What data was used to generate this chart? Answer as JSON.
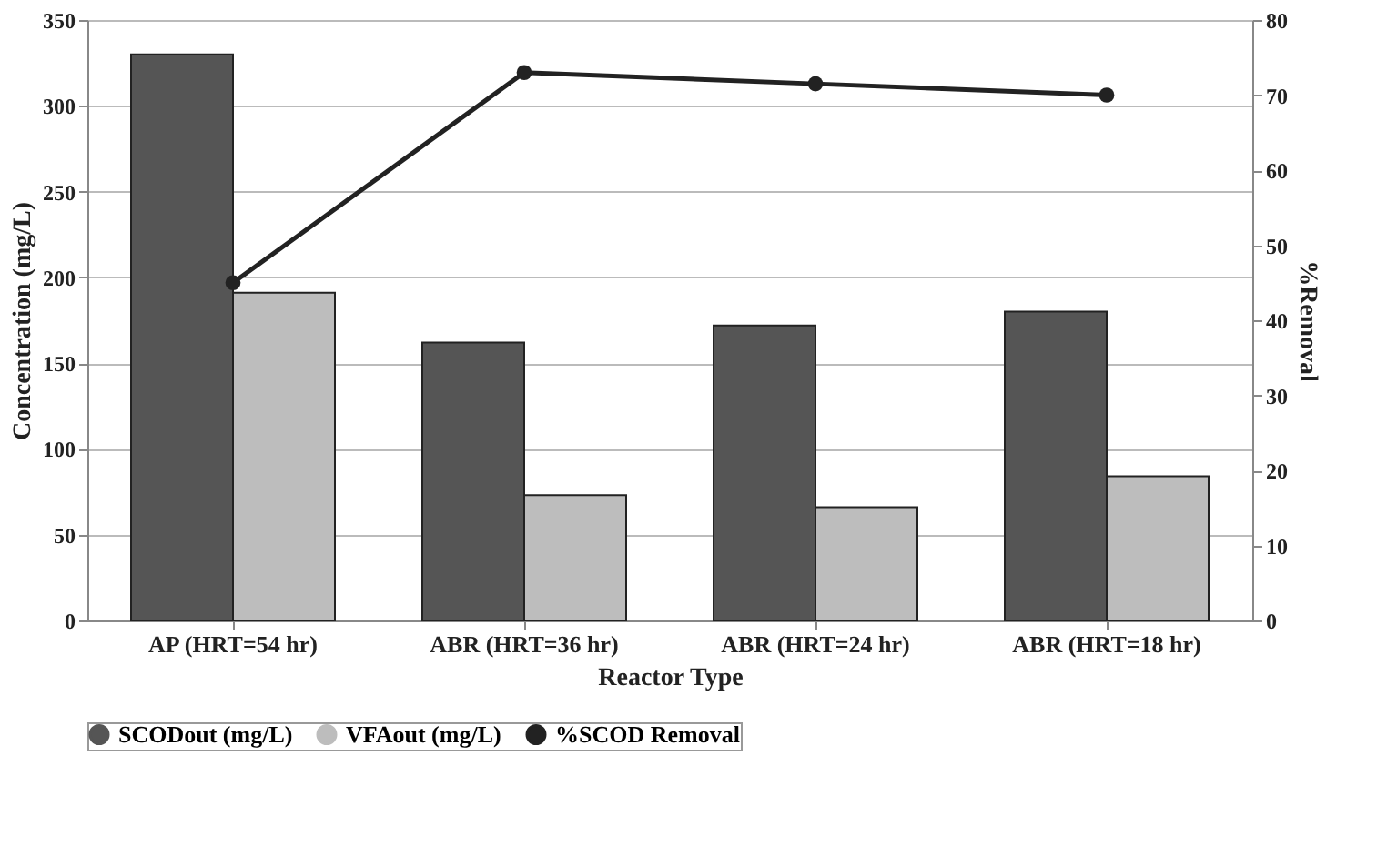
{
  "chart_data": {
    "type": "bar",
    "xlabel": "Reactor Type",
    "ylabel": "Concentration (mg/L)",
    "y2label": "%Removal",
    "categories": [
      "AP (HRT=54 hr)",
      "ABR (HRT=36 hr)",
      "ABR (HRT=24 hr)",
      "ABR (HRT=18 hr)"
    ],
    "series": [
      {
        "name": "SCODout (mg/L)",
        "color": "#555555",
        "values": [
          330,
          162,
          172,
          180
        ]
      },
      {
        "name": "VFAout (mg/L)",
        "color": "#bdbdbd",
        "values": [
          191,
          73,
          66,
          84
        ]
      },
      {
        "name": "%SCOD Removal",
        "color": "#222222",
        "type": "line",
        "axis": "y2",
        "marker": "circle",
        "values": [
          45,
          73,
          71.5,
          70
        ]
      }
    ],
    "ylim": [
      0,
      350
    ],
    "yticks": [
      0,
      50,
      100,
      150,
      200,
      250,
      300,
      350
    ],
    "y2lim": [
      0,
      80
    ],
    "y2ticks": [
      0,
      10,
      20,
      30,
      40,
      50,
      60,
      70,
      80
    ],
    "grid": "y",
    "legend": "bottom"
  }
}
